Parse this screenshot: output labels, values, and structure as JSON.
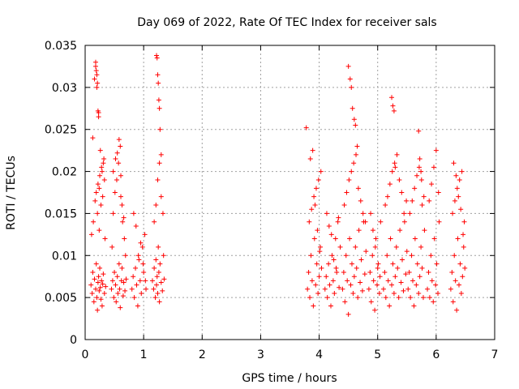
{
  "chart_data": {
    "type": "scatter",
    "title": "Day 069 of 2022, Rate Of TEC Index for receiver sals",
    "xlabel": "GPS time / hours",
    "ylabel": "ROTI / TECUs",
    "xlim": [
      0,
      7
    ],
    "ylim": [
      0,
      0.035
    ],
    "xticks": [
      "0",
      "1",
      "2",
      "3",
      "4",
      "5",
      "6",
      "7"
    ],
    "yticks": [
      "0",
      "0.005",
      "0.01",
      "0.015",
      "0.02",
      "0.025",
      "0.03",
      "0.035"
    ],
    "grid": true,
    "marker": "+",
    "color": "#ff0000",
    "series": [
      {
        "x": [
          0.1,
          0.12,
          0.13,
          0.15,
          0.16,
          0.18,
          0.19,
          0.2,
          0.21,
          0.22,
          0.23,
          0.24,
          0.25,
          0.26,
          0.27,
          0.28,
          0.29,
          0.3,
          0.31,
          0.33,
          0.35,
          0.11,
          0.14,
          0.17,
          0.19,
          0.21,
          0.22,
          0.24,
          0.25,
          0.27,
          0.28,
          0.3,
          0.32,
          0.34,
          0.13,
          0.16,
          0.18,
          0.2,
          0.23,
          0.26,
          0.29,
          0.31,
          0.33,
          0.18,
          0.19,
          0.2,
          0.21,
          0.22,
          0.23,
          0.24,
          0.45,
          0.47,
          0.49,
          0.5,
          0.52,
          0.53,
          0.55,
          0.56,
          0.58,
          0.59,
          0.6,
          0.62,
          0.63,
          0.65,
          0.66,
          0.68,
          0.7,
          0.46,
          0.48,
          0.51,
          0.54,
          0.57,
          0.6,
          0.61,
          0.64,
          0.67,
          0.69,
          0.48,
          0.52,
          0.55,
          0.58,
          0.61,
          0.63,
          0.66,
          0.8,
          0.82,
          0.84,
          0.86,
          0.88,
          0.9,
          0.92,
          0.94,
          0.96,
          0.98,
          1.0,
          1.02,
          1.04,
          0.83,
          0.87,
          0.91,
          0.95,
          0.99,
          1.03,
          1.15,
          1.17,
          1.18,
          1.2,
          1.21,
          1.22,
          1.23,
          1.24,
          1.25,
          1.26,
          1.27,
          1.28,
          1.3,
          1.32,
          1.34,
          1.35,
          1.18,
          1.21,
          1.24,
          1.27,
          1.3,
          1.33,
          1.22,
          1.23,
          1.24,
          1.25,
          1.26,
          1.27,
          1.28,
          1.3,
          3.78,
          3.8,
          3.82,
          3.84,
          3.86,
          3.88,
          3.9,
          3.92,
          3.94,
          3.96,
          3.98,
          4.0,
          4.02,
          4.04,
          3.83,
          3.87,
          3.91,
          3.95,
          3.99,
          4.03,
          3.85,
          3.89,
          3.93,
          3.97,
          4.01,
          4.1,
          4.12,
          4.14,
          4.16,
          4.18,
          4.2,
          4.22,
          4.24,
          4.26,
          4.28,
          4.3,
          4.32,
          4.34,
          4.36,
          4.13,
          4.17,
          4.21,
          4.25,
          4.29,
          4.33,
          4.4,
          4.42,
          4.44,
          4.46,
          4.48,
          4.5,
          4.52,
          4.54,
          4.56,
          4.58,
          4.6,
          4.62,
          4.64,
          4.66,
          4.68,
          4.7,
          4.72,
          4.74,
          4.76,
          4.78,
          4.8,
          4.43,
          4.47,
          4.51,
          4.55,
          4.59,
          4.63,
          4.67,
          4.71,
          4.75,
          4.79,
          4.5,
          4.53,
          4.55,
          4.57,
          4.6,
          4.62,
          4.65,
          4.85,
          4.87,
          4.89,
          4.91,
          4.93,
          4.95,
          4.97,
          4.99,
          5.01,
          5.03,
          5.05,
          4.88,
          4.92,
          4.96,
          5.0,
          5.04,
          5.1,
          5.12,
          5.14,
          5.16,
          5.18,
          5.2,
          5.22,
          5.24,
          5.26,
          5.28,
          5.3,
          5.32,
          5.34,
          5.36,
          5.38,
          5.4,
          5.42,
          5.44,
          5.46,
          5.48,
          5.5,
          5.13,
          5.17,
          5.21,
          5.25,
          5.29,
          5.33,
          5.37,
          5.41,
          5.45,
          5.49,
          5.24,
          5.26,
          5.28,
          5.3,
          5.52,
          5.54,
          5.56,
          5.58,
          5.6,
          5.62,
          5.64,
          5.66,
          5.68,
          5.7,
          5.72,
          5.74,
          5.76,
          5.78,
          5.8,
          5.55,
          5.59,
          5.63,
          5.67,
          5.71,
          5.75,
          5.79,
          5.7,
          5.72,
          5.74,
          5.76,
          5.85,
          5.87,
          5.89,
          5.91,
          5.93,
          5.95,
          5.97,
          5.99,
          6.01,
          6.03,
          6.05,
          5.88,
          5.92,
          5.96,
          6.0,
          6.04,
          6.25,
          6.27,
          6.29,
          6.31,
          6.33,
          6.35,
          6.37,
          6.39,
          6.41,
          6.43,
          6.45,
          6.47,
          6.49,
          6.28,
          6.32,
          6.36,
          6.4,
          6.44,
          6.48,
          6.3,
          6.34,
          6.38,
          6.42,
          6.46
        ],
        "y": [
          0.0065,
          0.0055,
          0.008,
          0.0045,
          0.0072,
          0.006,
          0.009,
          0.005,
          0.0035,
          0.0068,
          0.0075,
          0.0058,
          0.0085,
          0.0062,
          0.0048,
          0.007,
          0.004,
          0.0066,
          0.0078,
          0.0055,
          0.0063,
          0.0125,
          0.014,
          0.0165,
          0.0175,
          0.015,
          0.0185,
          0.013,
          0.0195,
          0.016,
          0.0205,
          0.017,
          0.0215,
          0.012,
          0.024,
          0.031,
          0.0325,
          0.03,
          0.027,
          0.0225,
          0.02,
          0.021,
          0.019,
          0.033,
          0.032,
          0.0315,
          0.0305,
          0.0272,
          0.0265,
          0.018,
          0.006,
          0.007,
          0.005,
          0.008,
          0.0065,
          0.0045,
          0.0075,
          0.0055,
          0.009,
          0.006,
          0.0038,
          0.007,
          0.0085,
          0.0052,
          0.0068,
          0.0058,
          0.0072,
          0.011,
          0.015,
          0.0175,
          0.019,
          0.021,
          0.023,
          0.017,
          0.014,
          0.012,
          0.01,
          0.02,
          0.0215,
          0.0222,
          0.0238,
          0.0195,
          0.016,
          0.0145,
          0.006,
          0.0075,
          0.005,
          0.0085,
          0.0065,
          0.004,
          0.0095,
          0.007,
          0.0055,
          0.011,
          0.008,
          0.0125,
          0.006,
          0.015,
          0.0135,
          0.01,
          0.0115,
          0.009,
          0.007,
          0.007,
          0.006,
          0.0085,
          0.005,
          0.0095,
          0.0065,
          0.0075,
          0.0055,
          0.011,
          0.008,
          0.0045,
          0.009,
          0.0068,
          0.0058,
          0.01,
          0.0072,
          0.014,
          0.016,
          0.019,
          0.021,
          0.017,
          0.015,
          0.0338,
          0.0335,
          0.0315,
          0.0305,
          0.0285,
          0.0275,
          0.025,
          0.022,
          0.0252,
          0.006,
          0.008,
          0.005,
          0.01,
          0.007,
          0.004,
          0.012,
          0.0065,
          0.009,
          0.0055,
          0.0075,
          0.011,
          0.0085,
          0.014,
          0.0155,
          0.017,
          0.018,
          0.019,
          0.02,
          0.0215,
          0.0225,
          0.016,
          0.013,
          0.0105,
          0.006,
          0.0075,
          0.005,
          0.009,
          0.0065,
          0.004,
          0.01,
          0.007,
          0.0055,
          0.012,
          0.008,
          0.014,
          0.0062,
          0.011,
          0.015,
          0.0135,
          0.0125,
          0.0095,
          0.0085,
          0.0145,
          0.006,
          0.008,
          0.0045,
          0.01,
          0.007,
          0.003,
          0.012,
          0.0065,
          0.009,
          0.0055,
          0.0075,
          0.011,
          0.0085,
          0.005,
          0.013,
          0.0068,
          0.0095,
          0.0058,
          0.014,
          0.0078,
          0.0105,
          0.016,
          0.0175,
          0.019,
          0.02,
          0.021,
          0.022,
          0.018,
          0.0165,
          0.015,
          0.014,
          0.0325,
          0.031,
          0.03,
          0.0275,
          0.0262,
          0.0255,
          0.023,
          0.006,
          0.008,
          0.0045,
          0.01,
          0.007,
          0.0035,
          0.012,
          0.0065,
          0.009,
          0.0055,
          0.014,
          0.015,
          0.013,
          0.011,
          0.0085,
          0.0075,
          0.006,
          0.008,
          0.005,
          0.01,
          0.007,
          0.004,
          0.012,
          0.0065,
          0.009,
          0.0055,
          0.0075,
          0.011,
          0.0085,
          0.005,
          0.013,
          0.0068,
          0.0095,
          0.0058,
          0.014,
          0.0078,
          0.0105,
          0.016,
          0.017,
          0.0185,
          0.02,
          0.021,
          0.022,
          0.019,
          0.0175,
          0.015,
          0.0165,
          0.0288,
          0.0278,
          0.0272,
          0.0205,
          0.006,
          0.008,
          0.005,
          0.01,
          0.007,
          0.004,
          0.012,
          0.0065,
          0.009,
          0.0055,
          0.0075,
          0.011,
          0.0085,
          0.005,
          0.013,
          0.015,
          0.0165,
          0.018,
          0.0195,
          0.0205,
          0.019,
          0.017,
          0.0248,
          0.0215,
          0.02,
          0.016,
          0.006,
          0.008,
          0.005,
          0.01,
          0.007,
          0.0045,
          0.012,
          0.0065,
          0.009,
          0.0055,
          0.014,
          0.0165,
          0.0185,
          0.0205,
          0.0225,
          0.0175,
          0.006,
          0.008,
          0.0045,
          0.01,
          0.007,
          0.0035,
          0.012,
          0.0065,
          0.009,
          0.0055,
          0.0075,
          0.011,
          0.0085,
          0.015,
          0.0165,
          0.018,
          0.019,
          0.02,
          0.014,
          0.021,
          0.0195,
          0.017,
          0.0155,
          0.0125
        ]
      }
    ]
  }
}
